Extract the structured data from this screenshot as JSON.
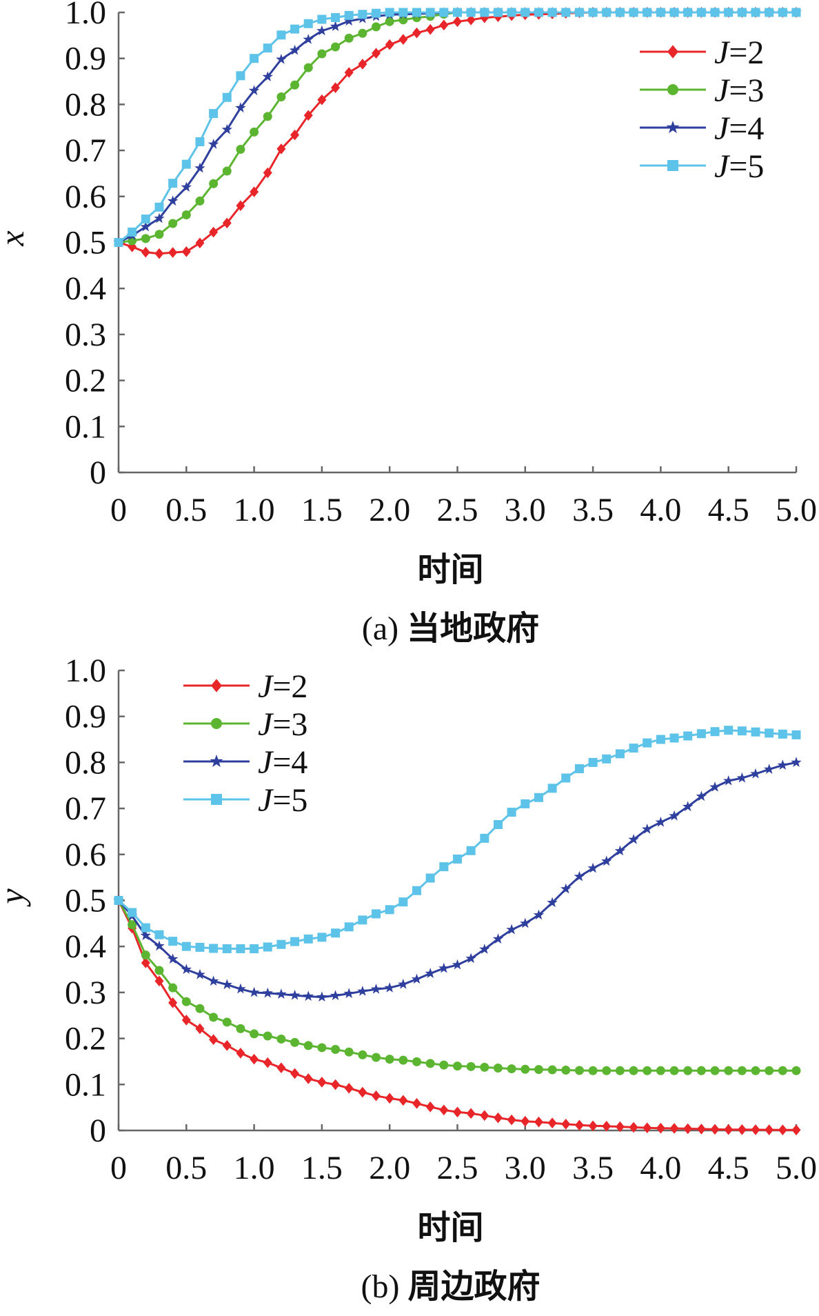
{
  "chart_data": [
    {
      "panel": "a",
      "type": "line",
      "caption": "(a) 当地政府",
      "xlabel": "时间",
      "ylabel": "x",
      "xlim": [
        0,
        5
      ],
      "ylim": [
        0,
        1
      ],
      "x_ticks": [
        "0",
        "0.5",
        "1.0",
        "1.5",
        "2.0",
        "2.5",
        "3.0",
        "3.5",
        "4.0",
        "4.5",
        "5.0"
      ],
      "y_ticks": [
        "0",
        "0.1",
        "0.2",
        "0.3",
        "0.4",
        "0.5",
        "0.6",
        "0.7",
        "0.8",
        "0.9",
        "1.0"
      ],
      "grid": false,
      "legend_position": "top-right",
      "x": [
        0,
        0.5,
        1.0,
        1.5,
        2.0,
        2.5,
        3.0,
        3.5,
        4.0,
        4.5,
        5.0
      ],
      "series": [
        {
          "name": "J=2",
          "label_italic": "J",
          "label_rest": "=2",
          "color": "#e8262a",
          "marker": "diamond",
          "points": [
            [
              0,
              0.5
            ],
            [
              0.25,
              0.475
            ],
            [
              0.5,
              0.48
            ],
            [
              0.75,
              0.53
            ],
            [
              1.0,
              0.61
            ],
            [
              1.25,
              0.72
            ],
            [
              1.5,
              0.81
            ],
            [
              1.75,
              0.88
            ],
            [
              2.0,
              0.93
            ],
            [
              2.25,
              0.96
            ],
            [
              2.5,
              0.98
            ],
            [
              2.75,
              0.99
            ],
            [
              3.0,
              0.995
            ],
            [
              3.5,
              1.0
            ],
            [
              4.0,
              1.0
            ],
            [
              4.5,
              1.0
            ],
            [
              5.0,
              1.0
            ]
          ]
        },
        {
          "name": "J=3",
          "label_italic": "J",
          "label_rest": "=3",
          "color": "#5cb531",
          "marker": "circle",
          "points": [
            [
              0,
              0.5
            ],
            [
              0.25,
              0.51
            ],
            [
              0.5,
              0.56
            ],
            [
              0.75,
              0.64
            ],
            [
              1.0,
              0.74
            ],
            [
              1.25,
              0.83
            ],
            [
              1.5,
              0.91
            ],
            [
              1.75,
              0.95
            ],
            [
              2.0,
              0.98
            ],
            [
              2.25,
              0.99
            ],
            [
              2.5,
              1.0
            ],
            [
              3.0,
              1.0
            ],
            [
              3.5,
              1.0
            ],
            [
              4.0,
              1.0
            ],
            [
              4.5,
              1.0
            ],
            [
              5.0,
              1.0
            ]
          ]
        },
        {
          "name": "J=4",
          "label_italic": "J",
          "label_rest": "=4",
          "color": "#2f3f9e",
          "marker": "star",
          "points": [
            [
              0,
              0.5
            ],
            [
              0.25,
              0.54
            ],
            [
              0.5,
              0.62
            ],
            [
              0.75,
              0.73
            ],
            [
              1.0,
              0.83
            ],
            [
              1.25,
              0.91
            ],
            [
              1.5,
              0.96
            ],
            [
              1.75,
              0.985
            ],
            [
              2.0,
              0.995
            ],
            [
              2.5,
              1.0
            ],
            [
              3.0,
              1.0
            ],
            [
              3.5,
              1.0
            ],
            [
              4.0,
              1.0
            ],
            [
              4.5,
              1.0
            ],
            [
              5.0,
              1.0
            ]
          ]
        },
        {
          "name": "J=5",
          "label_italic": "J",
          "label_rest": "=5",
          "color": "#5ec3e8",
          "marker": "square",
          "points": [
            [
              0,
              0.5
            ],
            [
              0.25,
              0.56
            ],
            [
              0.5,
              0.67
            ],
            [
              0.75,
              0.8
            ],
            [
              1.0,
              0.9
            ],
            [
              1.25,
              0.96
            ],
            [
              1.5,
              0.985
            ],
            [
              1.75,
              0.995
            ],
            [
              2.0,
              1.0
            ],
            [
              2.5,
              1.0
            ],
            [
              3.0,
              1.0
            ],
            [
              3.5,
              1.0
            ],
            [
              4.0,
              1.0
            ],
            [
              4.5,
              1.0
            ],
            [
              5.0,
              1.0
            ]
          ]
        }
      ]
    },
    {
      "panel": "b",
      "type": "line",
      "caption": "(b) 周边政府",
      "xlabel": "时间",
      "ylabel": "y",
      "xlim": [
        0,
        5
      ],
      "ylim": [
        0,
        1
      ],
      "x_ticks": [
        "0",
        "0.5",
        "1.0",
        "1.5",
        "2.0",
        "2.5",
        "3.0",
        "3.5",
        "4.0",
        "4.5",
        "5.0"
      ],
      "y_ticks": [
        "0",
        "0.1",
        "0.2",
        "0.3",
        "0.4",
        "0.5",
        "0.6",
        "0.7",
        "0.8",
        "0.9",
        "1.0"
      ],
      "grid": false,
      "legend_position": "top-left",
      "series": [
        {
          "name": "J=2",
          "label_italic": "J",
          "label_rest": "=2",
          "color": "#e8262a",
          "marker": "diamond",
          "points": [
            [
              0,
              0.5
            ],
            [
              0.25,
              0.34
            ],
            [
              0.5,
              0.24
            ],
            [
              0.75,
              0.19
            ],
            [
              1.0,
              0.155
            ],
            [
              1.5,
              0.105
            ],
            [
              2.0,
              0.07
            ],
            [
              2.5,
              0.04
            ],
            [
              3.0,
              0.02
            ],
            [
              3.5,
              0.01
            ],
            [
              4.0,
              0.005
            ],
            [
              4.5,
              0.002
            ],
            [
              5.0,
              0.001
            ]
          ]
        },
        {
          "name": "J=3",
          "label_italic": "J",
          "label_rest": "=3",
          "color": "#5cb531",
          "marker": "circle",
          "points": [
            [
              0,
              0.5
            ],
            [
              0.25,
              0.36
            ],
            [
              0.5,
              0.28
            ],
            [
              0.75,
              0.24
            ],
            [
              1.0,
              0.21
            ],
            [
              1.5,
              0.18
            ],
            [
              2.0,
              0.155
            ],
            [
              2.5,
              0.14
            ],
            [
              3.0,
              0.133
            ],
            [
              3.5,
              0.13
            ],
            [
              4.0,
              0.13
            ],
            [
              4.5,
              0.13
            ],
            [
              5.0,
              0.13
            ]
          ]
        },
        {
          "name": "J=4",
          "label_italic": "J",
          "label_rest": "=4",
          "color": "#2f3f9e",
          "marker": "star",
          "points": [
            [
              0,
              0.5
            ],
            [
              0.25,
              0.41
            ],
            [
              0.5,
              0.35
            ],
            [
              0.75,
              0.32
            ],
            [
              1.0,
              0.3
            ],
            [
              1.5,
              0.29
            ],
            [
              2.0,
              0.31
            ],
            [
              2.5,
              0.36
            ],
            [
              3.0,
              0.45
            ],
            [
              3.5,
              0.57
            ],
            [
              4.0,
              0.67
            ],
            [
              4.5,
              0.76
            ],
            [
              5.0,
              0.8
            ]
          ]
        },
        {
          "name": "J=5",
          "label_italic": "J",
          "label_rest": "=5",
          "color": "#5ec3e8",
          "marker": "square",
          "points": [
            [
              0,
              0.5
            ],
            [
              0.25,
              0.43
            ],
            [
              0.5,
              0.4
            ],
            [
              0.75,
              0.395
            ],
            [
              1.0,
              0.395
            ],
            [
              1.5,
              0.42
            ],
            [
              2.0,
              0.48
            ],
            [
              2.5,
              0.59
            ],
            [
              3.0,
              0.71
            ],
            [
              3.5,
              0.8
            ],
            [
              4.0,
              0.85
            ],
            [
              4.5,
              0.87
            ],
            [
              5.0,
              0.86
            ]
          ]
        }
      ]
    }
  ]
}
